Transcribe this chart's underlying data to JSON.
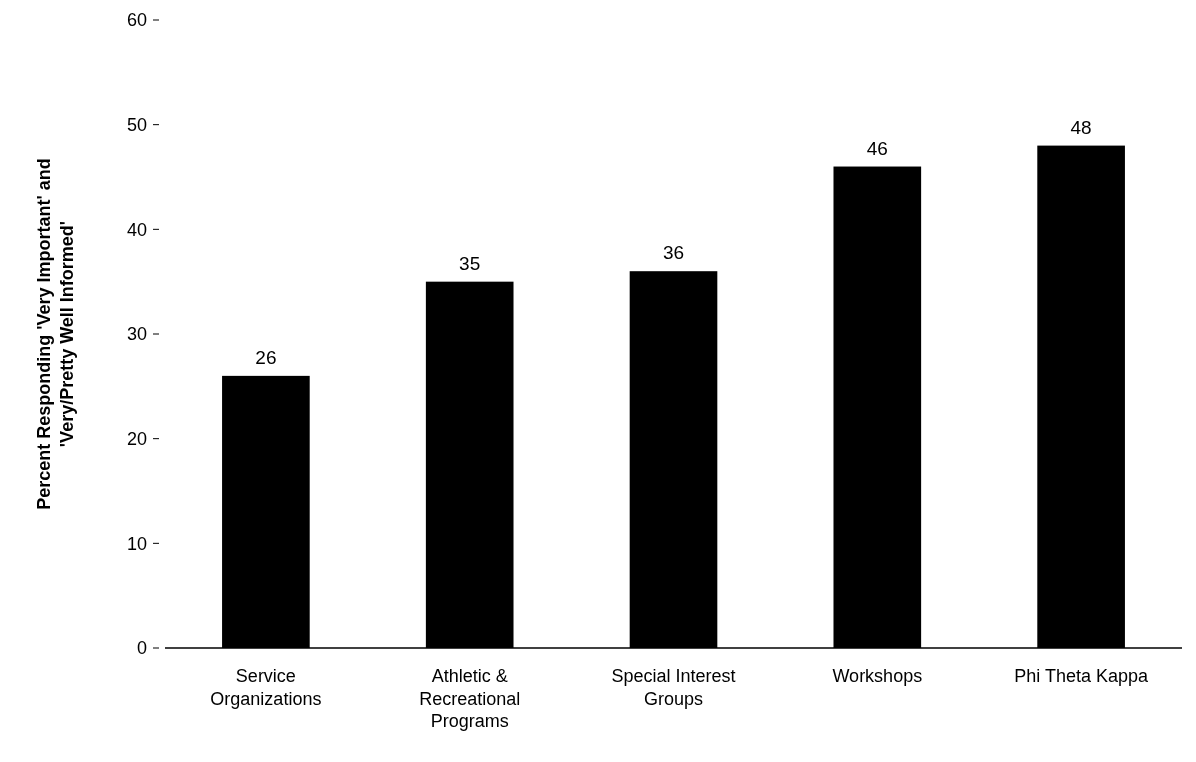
{
  "chart_data": {
    "type": "bar",
    "ylabel": "Percent Responding 'Very Important' and\n'Very/Pretty Well Informed'",
    "categories": [
      "Service Organizations",
      "Athletic & Recreational Programs",
      "Special Interest Groups",
      "Workshops",
      "Phi Theta Kappa"
    ],
    "values": [
      26,
      35,
      36,
      46,
      48
    ],
    "color": "#000000",
    "ylim": [
      0,
      60
    ],
    "yticks": [
      0,
      10,
      20,
      30,
      40,
      50,
      60
    ],
    "data_labels": true
  }
}
